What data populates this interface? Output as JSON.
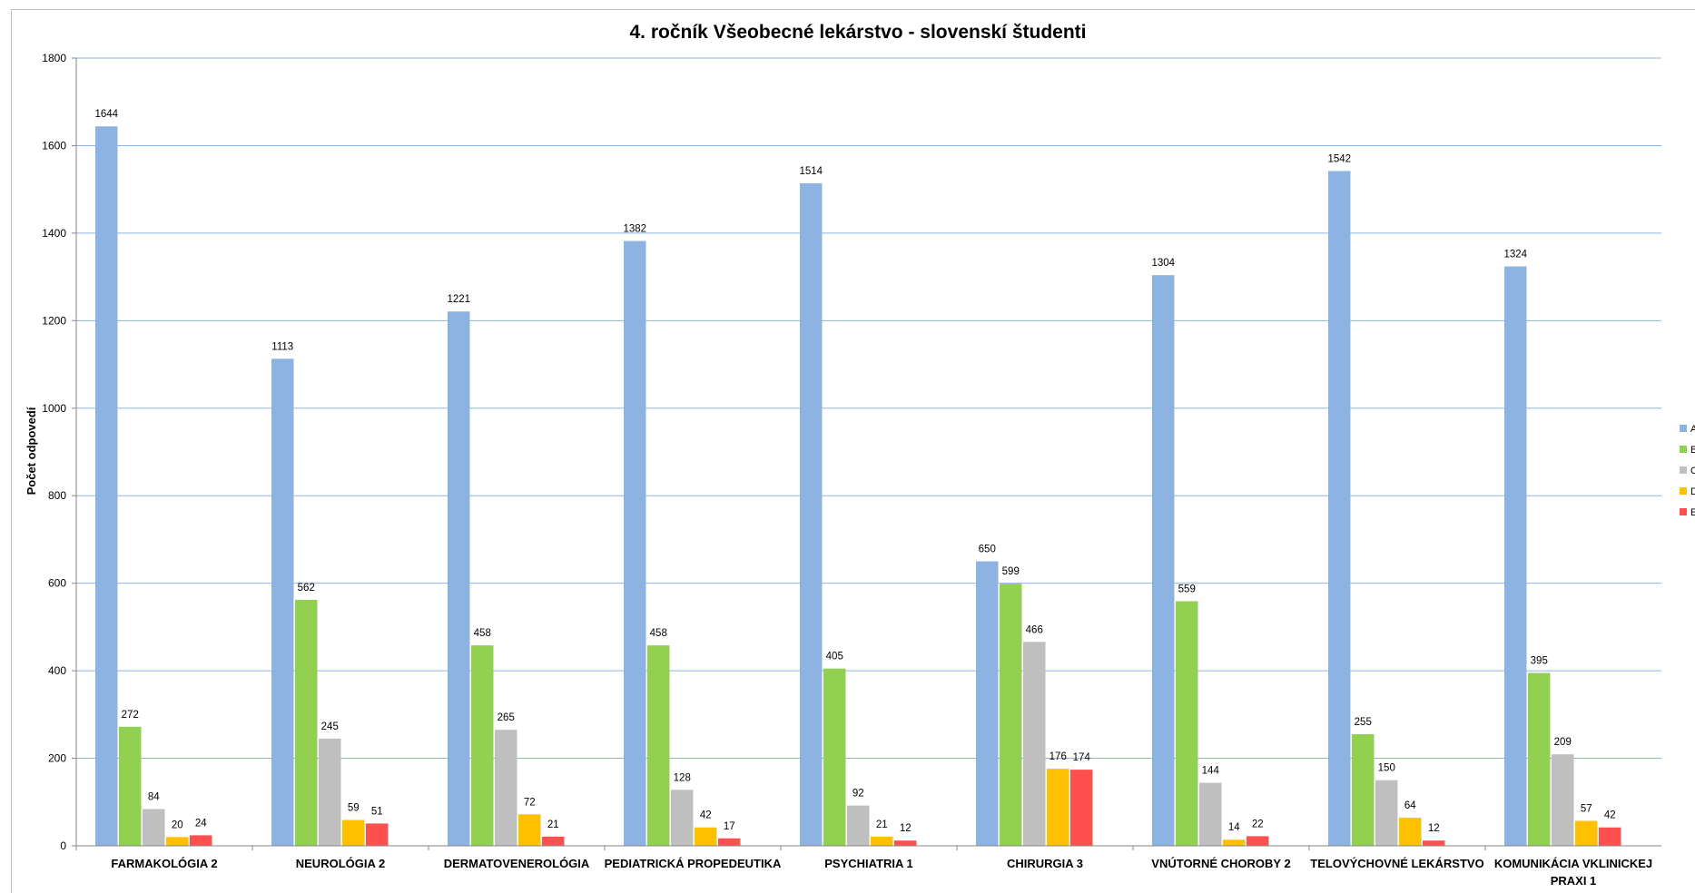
{
  "chart_data": {
    "type": "bar",
    "title": "4. ročník Všeobecné lekárstvo -  slovenskí študenti",
    "xlabel": "",
    "ylabel": "Počet odpovedí",
    "ylim": [
      0,
      1800
    ],
    "yticks": [
      0,
      200,
      400,
      600,
      800,
      1000,
      1200,
      1400,
      1600,
      1800
    ],
    "grid": true,
    "legend_position": "right",
    "categories": [
      [
        "FARMAKOLÓGIA 2"
      ],
      [
        "NEUROLÓGIA 2"
      ],
      [
        "DERMATOVENEROLÓGIA"
      ],
      [
        "PEDIATRICKÁ PROPEDEUTIKA"
      ],
      [
        "PSYCHIATRIA  1"
      ],
      [
        "CHIRURGIA 3"
      ],
      [
        "VNÚTORNÉ CHOROBY 2"
      ],
      [
        "TELOVÝCHOVNÉ LEKÁRSTVO"
      ],
      [
        "KOMUNIKÁCIA VKLINICKEJ",
        "PRAXI 1"
      ]
    ],
    "series": [
      {
        "name": "A",
        "color": "#8db3e2",
        "values": [
          1644,
          1113,
          1221,
          1382,
          1514,
          650,
          1304,
          1542,
          1324
        ]
      },
      {
        "name": "B",
        "color": "#92d050",
        "values": [
          272,
          562,
          458,
          458,
          405,
          599,
          559,
          255,
          395
        ]
      },
      {
        "name": "C",
        "color": "#bfbfbf",
        "values": [
          84,
          245,
          265,
          128,
          92,
          466,
          144,
          150,
          209
        ]
      },
      {
        "name": "D",
        "color": "#ffc000",
        "values": [
          20,
          59,
          72,
          42,
          21,
          176,
          14,
          64,
          57
        ]
      },
      {
        "name": "E",
        "color": "#ff5050",
        "values": [
          24,
          51,
          21,
          17,
          12,
          174,
          22,
          12,
          42
        ]
      }
    ],
    "colors": {
      "grid": "#8db3e2",
      "axis": "#868686",
      "border": "#bfbfbf"
    }
  }
}
